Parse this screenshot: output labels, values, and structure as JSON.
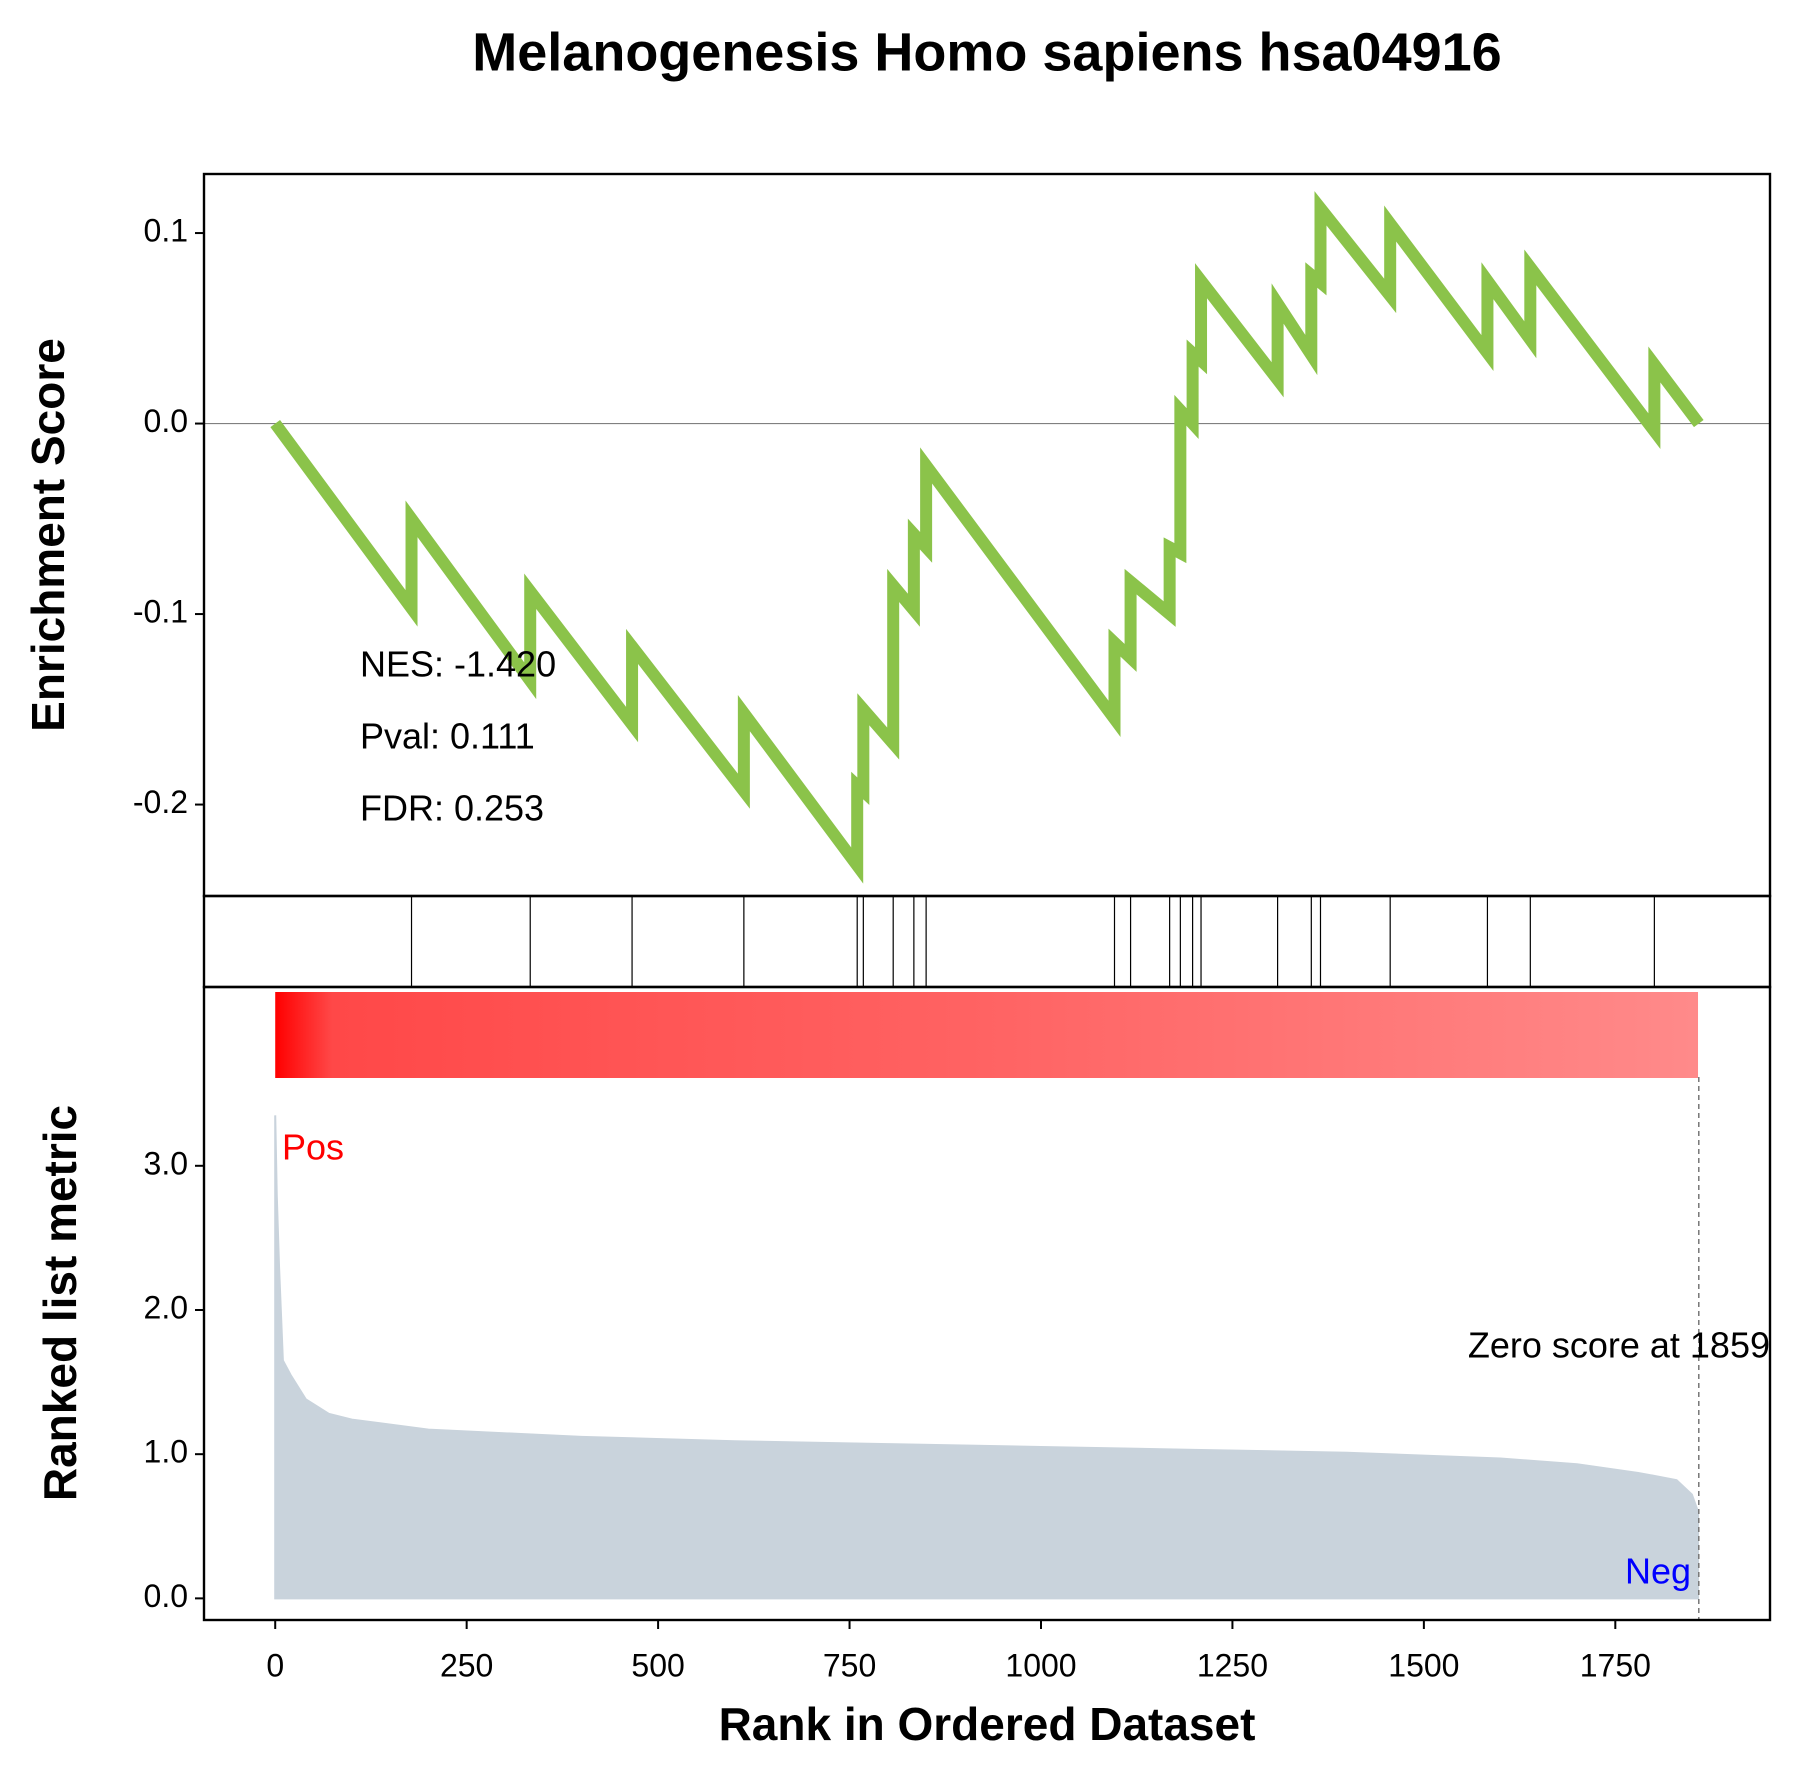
{
  "chart_data": {
    "type": "gsea",
    "title": "Melanogenesis Homo sapiens hsa04916",
    "xlabel": "Rank in Ordered Dataset",
    "xlim": [
      -93,
      1952
    ],
    "xticks": [
      0,
      250,
      500,
      750,
      1000,
      1250,
      1500,
      1750
    ],
    "es": {
      "ylabel": "Enrichment Score",
      "color": "#8bc34a",
      "ylim": [
        -0.248,
        0.131
      ],
      "yticks": [
        {
          "value": -0.2,
          "label": "-0.2"
        },
        {
          "value": -0.1,
          "label": "-0.1"
        },
        {
          "value": 0,
          "label": "0.0"
        },
        {
          "value": 0.1,
          "label": "0.1"
        }
      ],
      "x": [
        0,
        178,
        178,
        333,
        333,
        466,
        466,
        612,
        612,
        760,
        760,
        768,
        768,
        807,
        807,
        834,
        834,
        850,
        850,
        1096,
        1096,
        1117,
        1117,
        1168,
        1168,
        1182,
        1182,
        1198,
        1198,
        1209,
        1209,
        1309,
        1309,
        1353,
        1353,
        1365,
        1365,
        1456,
        1456,
        1583,
        1583,
        1639,
        1639,
        1801,
        1801,
        1859
      ],
      "values": [
        0,
        -0.097,
        -0.05,
        -0.135,
        -0.088,
        -0.158,
        -0.117,
        -0.193,
        -0.152,
        -0.232,
        -0.19,
        -0.193,
        -0.15,
        -0.168,
        -0.085,
        -0.098,
        -0.058,
        -0.065,
        -0.022,
        -0.155,
        -0.115,
        -0.123,
        -0.083,
        -0.1,
        -0.065,
        -0.068,
        0.007,
        0.0,
        0.037,
        0.033,
        0.075,
        0.023,
        0.063,
        0.036,
        0.078,
        0.074,
        0.113,
        0.067,
        0.105,
        0.037,
        0.075,
        0.044,
        0.082,
        -0.004,
        0.031,
        0.0
      ],
      "annotations": [
        "NES: -1.420",
        "Pval: 0.111",
        "FDR: 0.253"
      ]
    },
    "hits": [
      178,
      333,
      466,
      612,
      760,
      768,
      807,
      834,
      850,
      1096,
      1117,
      1168,
      1182,
      1198,
      1209,
      1309,
      1353,
      1365,
      1456,
      1583,
      1639,
      1801
    ],
    "metric": {
      "ylabel": "Ranked list metric",
      "color": "#c9d3dc",
      "ylim": [
        -0.15,
        4.24
      ],
      "yticks": [
        {
          "value": 0,
          "label": "0.0"
        },
        {
          "value": 1,
          "label": "1.0"
        },
        {
          "value": 2,
          "label": "2.0"
        },
        {
          "value": 3,
          "label": "3.0"
        }
      ],
      "x": [
        0,
        2,
        5,
        10,
        20,
        40,
        70,
        100,
        200,
        400,
        600,
        800,
        1000,
        1200,
        1400,
        1600,
        1700,
        1780,
        1830,
        1850,
        1858
      ],
      "values": [
        3.35,
        2.8,
        2.3,
        1.65,
        1.55,
        1.38,
        1.28,
        1.24,
        1.17,
        1.12,
        1.09,
        1.07,
        1.05,
        1.03,
        1.01,
        0.97,
        0.93,
        0.87,
        0.82,
        0.72,
        0.6
      ],
      "pos_label": "Pos",
      "neg_label": "Neg",
      "zero_score_at": 1859,
      "zero_score_text": "Zero score at 1859"
    }
  }
}
